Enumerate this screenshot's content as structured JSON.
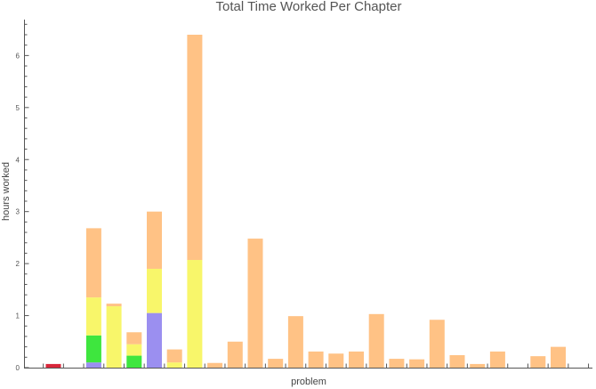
{
  "chart_data": {
    "type": "bar",
    "stacked": true,
    "title": "Total Time Worked Per Chapter",
    "xlabel": "problem",
    "ylabel": "hours worked",
    "ylim": [
      0,
      6.6
    ],
    "yticks": [
      0,
      1,
      2,
      3,
      4,
      5,
      6
    ],
    "grid": false,
    "legend": "none",
    "series_colors": [
      "#9B8FF0",
      "#3EE63E",
      "#F8F66A",
      "#FFC285",
      "#D8263A"
    ],
    "bars": [
      {
        "index": 1,
        "segments": [
          0,
          0,
          0,
          0,
          0.07
        ]
      },
      {
        "index": 2,
        "segments": [
          0,
          0,
          0,
          0,
          0
        ]
      },
      {
        "index": 3,
        "segments": [
          0.1,
          0.52,
          0.73,
          1.33,
          0
        ]
      },
      {
        "index": 4,
        "segments": [
          0,
          0,
          1.18,
          0.05,
          0
        ]
      },
      {
        "index": 5,
        "segments": [
          0,
          0.23,
          0.22,
          0.23,
          0
        ]
      },
      {
        "index": 6,
        "segments": [
          1.05,
          0,
          0.85,
          1.1,
          0
        ]
      },
      {
        "index": 7,
        "segments": [
          0,
          0,
          0.1,
          0.25,
          0
        ]
      },
      {
        "index": 8,
        "segments": [
          0,
          0,
          2.07,
          4.33,
          0
        ]
      },
      {
        "index": 9,
        "segments": [
          0,
          0,
          0,
          0.09,
          0
        ]
      },
      {
        "index": 10,
        "segments": [
          0,
          0,
          0,
          0.5,
          0
        ]
      },
      {
        "index": 11,
        "segments": [
          0,
          0,
          0,
          2.48,
          0
        ]
      },
      {
        "index": 12,
        "segments": [
          0,
          0,
          0,
          0.17,
          0
        ]
      },
      {
        "index": 13,
        "segments": [
          0,
          0,
          0,
          0.99,
          0
        ]
      },
      {
        "index": 14,
        "segments": [
          0,
          0,
          0,
          0.31,
          0
        ]
      },
      {
        "index": 15,
        "segments": [
          0,
          0,
          0,
          0.27,
          0
        ]
      },
      {
        "index": 16,
        "segments": [
          0,
          0,
          0,
          0.31,
          0
        ]
      },
      {
        "index": 17,
        "segments": [
          0,
          0,
          0,
          1.03,
          0
        ]
      },
      {
        "index": 18,
        "segments": [
          0,
          0,
          0,
          0.17,
          0
        ]
      },
      {
        "index": 19,
        "segments": [
          0,
          0,
          0,
          0.16,
          0
        ]
      },
      {
        "index": 20,
        "segments": [
          0,
          0,
          0,
          0.92,
          0
        ]
      },
      {
        "index": 21,
        "segments": [
          0,
          0,
          0,
          0.24,
          0
        ]
      },
      {
        "index": 22,
        "segments": [
          0,
          0,
          0,
          0.07,
          0
        ]
      },
      {
        "index": 23,
        "segments": [
          0,
          0,
          0,
          0.31,
          0
        ]
      },
      {
        "index": 24,
        "segments": [
          0,
          0,
          0,
          0,
          0
        ]
      },
      {
        "index": 25,
        "segments": [
          0,
          0,
          0,
          0.22,
          0
        ]
      },
      {
        "index": 26,
        "segments": [
          0,
          0,
          0,
          0.4,
          0
        ]
      },
      {
        "index": 27,
        "segments": [
          0,
          0,
          0,
          0,
          0
        ]
      }
    ]
  }
}
